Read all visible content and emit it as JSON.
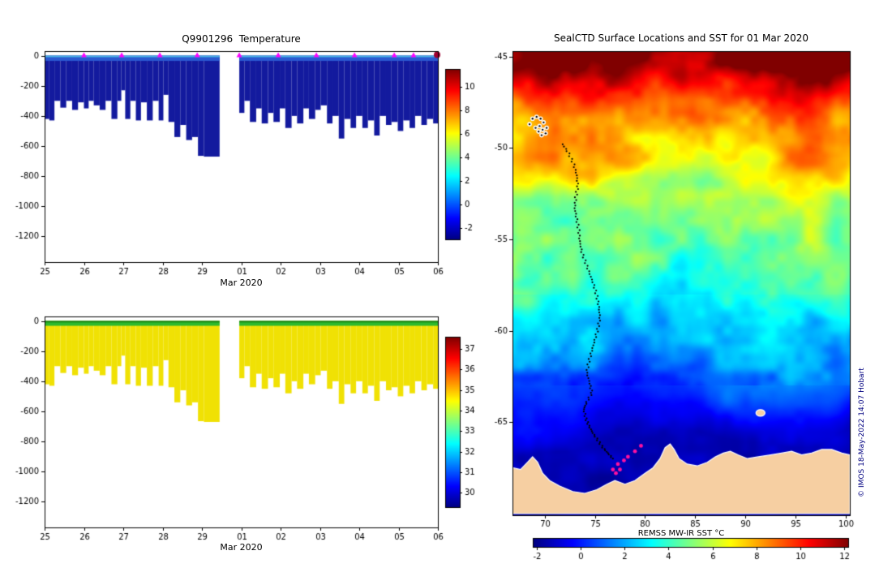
{
  "chart_data": [
    {
      "id": "temperature_profile",
      "type": "area",
      "title": "Q9901296  Temperature",
      "xlabel": "Mar 2020",
      "x_tick_labels": [
        "25",
        "26",
        "27",
        "28",
        "29",
        "01",
        "02",
        "03",
        "04",
        "05",
        "06"
      ],
      "x_tick_positions_days": [
        0,
        1,
        2,
        3,
        4,
        5,
        6,
        7,
        8,
        9,
        10
      ],
      "xlim_days": [
        0,
        10
      ],
      "y_ticks_m": [
        0,
        -200,
        -400,
        -600,
        -800,
        -1000,
        -1200
      ],
      "ylim_m": [
        30,
        -1370
      ],
      "body_color": "#131a9e",
      "surface_bands": [
        {
          "depth_m": 35,
          "color": "#2a58d0"
        },
        {
          "depth_m": 10,
          "color": "#4ab4e4"
        }
      ],
      "colorbar": {
        "ticks": [
          10,
          8,
          6,
          4,
          2,
          0,
          -2
        ],
        "range": [
          -3,
          11.5
        ]
      },
      "segments": [
        {
          "x_days": [
            0.0,
            0.12,
            0.25,
            0.4,
            0.55,
            0.7,
            0.85,
            1.0,
            1.12,
            1.25,
            1.4,
            1.55,
            1.7,
            1.85,
            1.95,
            2.05,
            2.18,
            2.32,
            2.45,
            2.6,
            2.75,
            2.9,
            3.02,
            3.15,
            3.3,
            3.45,
            3.6,
            3.75,
            3.9,
            4.05,
            4.45
          ],
          "max_depth_m": [
            -420,
            -430,
            -300,
            -345,
            -300,
            -360,
            -310,
            -350,
            -300,
            -330,
            -360,
            -300,
            -420,
            -300,
            -230,
            -420,
            -300,
            -430,
            -310,
            -430,
            -300,
            -430,
            -260,
            -440,
            -540,
            -460,
            -560,
            -540,
            -665,
            -670,
            -670
          ]
        },
        {
          "x_days": [
            4.95,
            5.08,
            5.22,
            5.38,
            5.52,
            5.68,
            5.82,
            5.98,
            6.12,
            6.28,
            6.42,
            6.58,
            6.72,
            6.88,
            7.02,
            7.18,
            7.32,
            7.48,
            7.62,
            7.78,
            7.92,
            8.08,
            8.22,
            8.38,
            8.52,
            8.68,
            8.82,
            8.98,
            9.12,
            9.28,
            9.42,
            9.58,
            9.72,
            9.88,
            10.0
          ],
          "max_depth_m": [
            -380,
            -300,
            -440,
            -350,
            -450,
            -380,
            -440,
            -350,
            -480,
            -400,
            -450,
            -350,
            -420,
            -360,
            -330,
            -450,
            -400,
            -550,
            -420,
            -480,
            -400,
            -480,
            -430,
            -530,
            -400,
            -460,
            -440,
            -500,
            -430,
            -480,
            -400,
            -460,
            -420,
            -450,
            -450
          ]
        }
      ],
      "surface_markers": {
        "symbol": "triangle-up",
        "color": "#ff00ff",
        "x_days": [
          1.0,
          1.96,
          2.93,
          3.88,
          4.95,
          5.94,
          6.91,
          7.88,
          8.89,
          9.38
        ]
      },
      "end_marker": {
        "symbol": "circle",
        "color": "#a00030",
        "x_day": 10
      }
    },
    {
      "id": "salinity_profile",
      "type": "area",
      "title": "",
      "xlabel": "Mar 2020",
      "x_tick_labels": [
        "25",
        "26",
        "27",
        "28",
        "29",
        "01",
        "02",
        "03",
        "04",
        "05",
        "06"
      ],
      "x_tick_positions_days": [
        0,
        1,
        2,
        3,
        4,
        5,
        6,
        7,
        8,
        9,
        10
      ],
      "xlim_days": [
        0,
        10
      ],
      "y_ticks_m": [
        0,
        -200,
        -400,
        -600,
        -800,
        -1000,
        -1200
      ],
      "ylim_m": [
        30,
        -1370
      ],
      "body_color": "#f0e104",
      "surface_bands": [
        {
          "depth_m": 32,
          "color": "#2db92d"
        },
        {
          "depth_m": 9,
          "color": "#0e7d0e"
        }
      ],
      "colorbar": {
        "ticks": [
          37,
          36,
          35,
          34,
          33,
          32,
          31,
          30
        ],
        "range": [
          29.3,
          37.6
        ]
      },
      "segments": [
        {
          "x_days": [
            0.0,
            0.12,
            0.25,
            0.4,
            0.55,
            0.7,
            0.85,
            1.0,
            1.12,
            1.25,
            1.4,
            1.55,
            1.7,
            1.85,
            1.95,
            2.05,
            2.18,
            2.32,
            2.45,
            2.6,
            2.75,
            2.9,
            3.02,
            3.15,
            3.3,
            3.45,
            3.6,
            3.75,
            3.9,
            4.05,
            4.45
          ],
          "max_depth_m": [
            -420,
            -430,
            -300,
            -345,
            -300,
            -360,
            -310,
            -350,
            -300,
            -330,
            -360,
            -300,
            -420,
            -300,
            -230,
            -420,
            -300,
            -430,
            -310,
            -430,
            -300,
            -430,
            -260,
            -440,
            -540,
            -460,
            -560,
            -540,
            -665,
            -670,
            -670
          ]
        },
        {
          "x_days": [
            4.95,
            5.08,
            5.22,
            5.38,
            5.52,
            5.68,
            5.82,
            5.98,
            6.12,
            6.28,
            6.42,
            6.58,
            6.72,
            6.88,
            7.02,
            7.18,
            7.32,
            7.48,
            7.62,
            7.78,
            7.92,
            8.08,
            8.22,
            8.38,
            8.52,
            8.68,
            8.82,
            8.98,
            9.12,
            9.28,
            9.42,
            9.58,
            9.72,
            9.88,
            10.0
          ],
          "max_depth_m": [
            -380,
            -300,
            -440,
            -350,
            -450,
            -380,
            -440,
            -350,
            -480,
            -400,
            -450,
            -350,
            -420,
            -360,
            -330,
            -450,
            -400,
            -550,
            -420,
            -480,
            -400,
            -480,
            -430,
            -530,
            -400,
            -460,
            -440,
            -500,
            -430,
            -480,
            -400,
            -460,
            -420,
            -450,
            -450
          ]
        }
      ]
    },
    {
      "id": "sst_map",
      "type": "heatmap",
      "title": "SealCTD Surface Locations and SST for 01 Mar 2020",
      "x_ticks": [
        70,
        75,
        80,
        85,
        90,
        95,
        100
      ],
      "y_ticks": [
        -45,
        -50,
        -55,
        -60,
        -65
      ],
      "lon_range": [
        66.8,
        100.4
      ],
      "lat_range": [
        -70.1,
        -44.7
      ],
      "colorbar": {
        "label": "REMSS MW-IR SST °C",
        "ticks": [
          -2,
          0,
          2,
          4,
          6,
          8,
          10,
          12
        ],
        "range": [
          -2.2,
          12.2
        ]
      },
      "credit": "© IMOS 18-May-2022 14:07 Hobart",
      "land_color": "#f6cfa2",
      "sst_lat_profile": [
        [
          -44.7,
          11.8
        ],
        [
          -46.0,
          10.6
        ],
        [
          -47.5,
          9.4
        ],
        [
          -49.0,
          8.3
        ],
        [
          -50.0,
          7.4
        ],
        [
          -51.5,
          6.4
        ],
        [
          -53.0,
          5.6
        ],
        [
          -54.5,
          5.1
        ],
        [
          -56.0,
          4.6
        ],
        [
          -57.5,
          3.9
        ],
        [
          -59.0,
          3.0
        ],
        [
          -60.0,
          2.5
        ],
        [
          -61.0,
          2.0
        ],
        [
          -62.0,
          1.5
        ],
        [
          -63.0,
          0.9
        ],
        [
          -64.0,
          0.2
        ],
        [
          -65.0,
          -0.6
        ],
        [
          -66.0,
          -1.3
        ],
        [
          -70.1,
          -1.7
        ]
      ],
      "warm_anomalies": [
        {
          "lon": 73.5,
          "lat": -45.3,
          "amp": 2.5,
          "sx": 3.5,
          "sy": 1.3
        },
        {
          "lon": 96.5,
          "lat": -45.6,
          "amp": 1.8,
          "sx": 4.5,
          "sy": 1.6
        }
      ],
      "noise": {
        "seed": 11,
        "displacement": {
          "wx": 6,
          "wy": 3,
          "amp": 1.9
        },
        "octaves": [
          {
            "wx": 2.2,
            "wy": 1.1,
            "amp": 0.8
          },
          {
            "wx": 0.9,
            "wy": 0.5,
            "amp": 0.35
          }
        ]
      },
      "track_start_cluster": [
        [
          68.5,
          -48.7
        ],
        [
          68.8,
          -48.4
        ],
        [
          69.2,
          -48.3
        ],
        [
          69.6,
          -48.4
        ],
        [
          69.9,
          -48.6
        ],
        [
          69.5,
          -48.8
        ],
        [
          69.1,
          -48.9
        ],
        [
          69.4,
          -49.1
        ],
        [
          69.8,
          -49.0
        ],
        [
          70.2,
          -48.9
        ],
        [
          70.1,
          -49.2
        ],
        [
          69.7,
          -49.3
        ]
      ],
      "track": [
        [
          71.8,
          -49.8
        ],
        [
          72.4,
          -50.3
        ],
        [
          72.9,
          -50.9
        ],
        [
          73.2,
          -51.5
        ],
        [
          73.3,
          -52.1
        ],
        [
          73.1,
          -52.7
        ],
        [
          73.0,
          -53.3
        ],
        [
          73.2,
          -53.9
        ],
        [
          73.4,
          -54.5
        ],
        [
          73.5,
          -55.1
        ],
        [
          73.7,
          -55.7
        ],
        [
          74.1,
          -56.3
        ],
        [
          74.5,
          -56.9
        ],
        [
          74.9,
          -57.5
        ],
        [
          75.2,
          -58.1
        ],
        [
          75.4,
          -58.7
        ],
        [
          75.5,
          -59.3
        ],
        [
          75.3,
          -59.9
        ],
        [
          75.0,
          -60.5
        ],
        [
          74.7,
          -61.1
        ],
        [
          74.4,
          -61.7
        ],
        [
          74.2,
          -62.3
        ],
        [
          74.5,
          -62.9
        ],
        [
          74.7,
          -63.4
        ],
        [
          74.2,
          -63.9
        ],
        [
          73.9,
          -64.3
        ],
        [
          74.1,
          -64.8
        ],
        [
          74.4,
          -65.2
        ],
        [
          74.8,
          -65.6
        ],
        [
          75.3,
          -66.0
        ],
        [
          75.8,
          -66.4
        ],
        [
          76.3,
          -66.7
        ],
        [
          76.8,
          -67.0
        ]
      ],
      "deployment_markers": {
        "color": "#ff10a0",
        "points": [
          [
            76.8,
            -67.6
          ],
          [
            77.1,
            -67.8
          ],
          [
            77.5,
            -67.6
          ],
          [
            77.3,
            -67.3
          ],
          [
            77.9,
            -67.1
          ],
          [
            78.3,
            -66.9
          ],
          [
            79.0,
            -66.6
          ],
          [
            79.6,
            -66.3
          ]
        ]
      },
      "coastline": [
        [
          66.8,
          -67.5
        ],
        [
          67.6,
          -67.6
        ],
        [
          68.3,
          -67.2
        ],
        [
          68.8,
          -66.9
        ],
        [
          69.3,
          -67.2
        ],
        [
          69.8,
          -67.8
        ],
        [
          70.5,
          -68.2
        ],
        [
          71.5,
          -68.5
        ],
        [
          72.8,
          -68.8
        ],
        [
          74.0,
          -68.9
        ],
        [
          75.2,
          -68.7
        ],
        [
          76.2,
          -68.4
        ],
        [
          77.0,
          -68.2
        ],
        [
          78.0,
          -68.4
        ],
        [
          79.0,
          -68.2
        ],
        [
          80.0,
          -67.8
        ],
        [
          80.8,
          -67.5
        ],
        [
          81.5,
          -67.0
        ],
        [
          82.0,
          -66.4
        ],
        [
          82.5,
          -66.2
        ],
        [
          82.9,
          -66.5
        ],
        [
          83.4,
          -67.0
        ],
        [
          84.2,
          -67.3
        ],
        [
          85.2,
          -67.4
        ],
        [
          86.2,
          -67.2
        ],
        [
          87.0,
          -66.9
        ],
        [
          87.8,
          -66.7
        ],
        [
          88.5,
          -66.6
        ],
        [
          89.3,
          -66.8
        ],
        [
          90.2,
          -67.0
        ],
        [
          91.3,
          -66.9
        ],
        [
          92.5,
          -66.8
        ],
        [
          93.6,
          -66.7
        ],
        [
          94.6,
          -66.6
        ],
        [
          95.6,
          -66.8
        ],
        [
          96.6,
          -66.7
        ],
        [
          97.6,
          -66.5
        ],
        [
          98.6,
          -66.5
        ],
        [
          99.6,
          -66.7
        ],
        [
          100.4,
          -66.8
        ]
      ],
      "island": {
        "lon": 91.5,
        "lat": -64.5,
        "rx": 0.45,
        "ry": 0.18
      }
    }
  ]
}
